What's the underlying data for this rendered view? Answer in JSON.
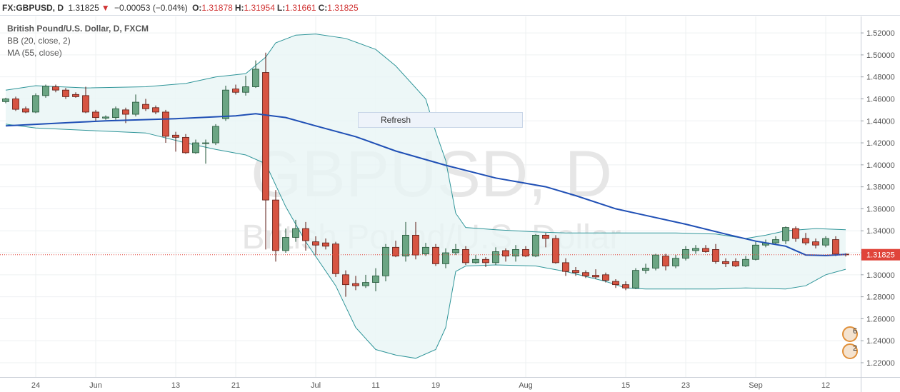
{
  "chart_data": {
    "type": "candlestick",
    "header": {
      "symbol": "FX:GBPUSD, D",
      "price": "1.31825",
      "arrow": "▼",
      "change": "−0.00053 (−0.04%)",
      "ohlc": [
        {
          "label": "O:",
          "value": "1.31878"
        },
        {
          "label": "H:",
          "value": "1.31954"
        },
        {
          "label": "L:",
          "value": "1.31661"
        },
        {
          "label": "C:",
          "value": "1.31825"
        }
      ]
    },
    "legend": [
      "British Pound/U.S. Dollar, D, FXCM",
      "BB (20, close, 2)",
      "MA (55, close)"
    ],
    "watermark": [
      "GBPUSD, D",
      "British Pound/U.S. Dollar"
    ],
    "button": "Refresh",
    "categories": [
      null,
      null,
      null,
      "24",
      null,
      null,
      null,
      null,
      null,
      "Jun",
      null,
      null,
      null,
      null,
      null,
      null,
      null,
      "13",
      null,
      null,
      null,
      null,
      null,
      "21",
      null,
      null,
      null,
      null,
      null,
      null,
      null,
      "Jul",
      null,
      null,
      null,
      null,
      null,
      "11",
      null,
      null,
      null,
      null,
      null,
      "19",
      null,
      null,
      null,
      null,
      null,
      null,
      null,
      null,
      "Aug",
      null,
      null,
      null,
      null,
      null,
      null,
      null,
      null,
      null,
      "15",
      null,
      null,
      null,
      null,
      null,
      "23",
      null,
      null,
      null,
      null,
      null,
      null,
      "Sep",
      null,
      null,
      null,
      null,
      null,
      null,
      "12",
      null,
      null
    ],
    "open": [
      1.4575,
      1.46,
      1.451,
      1.448,
      1.463,
      1.471,
      1.468,
      1.464,
      1.463,
      1.448,
      1.4425,
      1.443,
      1.45,
      1.446,
      1.455,
      1.452,
      1.448,
      1.427,
      1.425,
      1.411,
      1.4195,
      1.42,
      1.442,
      1.469,
      1.466,
      1.471,
      1.484,
      1.368,
      1.322,
      1.334,
      1.342,
      1.33,
      1.329,
      1.328,
      1.3,
      1.292,
      1.29,
      1.293,
      1.299,
      1.325,
      1.317,
      1.336,
      1.319,
      1.325,
      1.31,
      1.32,
      1.323,
      1.311,
      1.314,
      1.311,
      1.322,
      1.317,
      1.323,
      1.317,
      1.336,
      1.333,
      1.311,
      1.304,
      1.302,
      1.2995,
      1.3,
      1.294,
      1.291,
      1.288,
      1.304,
      1.306,
      1.317,
      1.308,
      1.315,
      1.322,
      1.324,
      1.323,
      1.312,
      1.312,
      1.308,
      1.314,
      1.327,
      1.329,
      1.331,
      1.342,
      1.333,
      1.33,
      1.327,
      1.332,
      1.31878
    ],
    "high": [
      1.461,
      1.462,
      1.453,
      1.465,
      1.473,
      1.473,
      1.47,
      1.466,
      1.471,
      1.45,
      1.445,
      1.453,
      1.452,
      1.464,
      1.46,
      1.454,
      1.45,
      1.43,
      1.428,
      1.423,
      1.423,
      1.437,
      1.472,
      1.473,
      1.481,
      1.495,
      1.502,
      1.377,
      1.342,
      1.35,
      1.348,
      1.335,
      1.333,
      1.33,
      1.304,
      1.299,
      1.3,
      1.306,
      1.328,
      1.331,
      1.348,
      1.348,
      1.329,
      1.328,
      1.324,
      1.328,
      1.326,
      1.318,
      1.316,
      1.325,
      1.324,
      1.327,
      1.326,
      1.337,
      1.338,
      1.336,
      1.315,
      1.307,
      1.304,
      1.305,
      1.302,
      1.296,
      1.294,
      1.306,
      1.31,
      1.319,
      1.319,
      1.318,
      1.326,
      1.327,
      1.327,
      1.328,
      1.315,
      1.315,
      1.317,
      1.33,
      1.332,
      1.335,
      1.344,
      1.344,
      1.338,
      1.333,
      1.335,
      1.335,
      1.31954
    ],
    "low": [
      1.456,
      1.449,
      1.447,
      1.447,
      1.461,
      1.466,
      1.46,
      1.461,
      1.447,
      1.44,
      1.441,
      1.441,
      1.438,
      1.444,
      1.449,
      1.446,
      1.42,
      1.412,
      1.41,
      1.41,
      1.401,
      1.418,
      1.44,
      1.464,
      1.463,
      1.47,
      1.323,
      1.312,
      1.32,
      1.33,
      1.322,
      1.318,
      1.323,
      1.298,
      1.28,
      1.286,
      1.288,
      1.285,
      1.294,
      1.316,
      1.312,
      1.314,
      1.317,
      1.308,
      1.306,
      1.318,
      1.309,
      1.31,
      1.307,
      1.309,
      1.312,
      1.312,
      1.316,
      1.316,
      1.325,
      1.31,
      1.299,
      1.299,
      1.297,
      1.296,
      1.293,
      1.288,
      1.286,
      1.287,
      1.301,
      1.304,
      1.304,
      1.306,
      1.313,
      1.319,
      1.32,
      1.31,
      1.307,
      1.307,
      1.307,
      1.313,
      1.325,
      1.328,
      1.328,
      1.33,
      1.327,
      1.324,
      1.325,
      1.317,
      1.31661
    ],
    "close": [
      1.46,
      1.4505,
      1.448,
      1.463,
      1.4715,
      1.468,
      1.462,
      1.462,
      1.448,
      1.443,
      1.4435,
      1.451,
      1.446,
      1.457,
      1.451,
      1.448,
      1.426,
      1.425,
      1.411,
      1.42,
      1.42,
      1.435,
      1.468,
      1.466,
      1.471,
      1.487,
      1.368,
      1.322,
      1.334,
      1.342,
      1.331,
      1.327,
      1.326,
      1.301,
      1.291,
      1.29,
      1.293,
      1.299,
      1.325,
      1.317,
      1.336,
      1.318,
      1.325,
      1.31,
      1.32,
      1.323,
      1.311,
      1.314,
      1.311,
      1.321,
      1.317,
      1.323,
      1.317,
      1.336,
      1.333,
      1.311,
      1.303,
      1.302,
      1.299,
      1.298,
      1.295,
      1.291,
      1.288,
      1.304,
      1.306,
      1.318,
      1.308,
      1.315,
      1.323,
      1.324,
      1.321,
      1.312,
      1.31,
      1.308,
      1.314,
      1.327,
      1.329,
      1.332,
      1.343,
      1.333,
      1.329,
      1.327,
      1.333,
      1.3188,
      1.31825
    ],
    "up_color": "#6ba583",
    "down_color": "#d75442",
    "bb": {
      "color": "#2f9599",
      "fill": "#e9f5f5",
      "upper": {
        "x": [
          0,
          3,
          8,
          14,
          18,
          21,
          24,
          26,
          27,
          29,
          31,
          34,
          37,
          39,
          42,
          43,
          44,
          45,
          46,
          49,
          53,
          56,
          60,
          64,
          67,
          71,
          74,
          76,
          78,
          81,
          84
        ],
        "values": [
          1.468,
          1.472,
          1.47,
          1.471,
          1.474,
          1.48,
          1.483,
          1.498,
          1.511,
          1.518,
          1.519,
          1.515,
          1.505,
          1.49,
          1.46,
          1.43,
          1.404,
          1.356,
          1.343,
          1.341,
          1.339,
          1.338,
          1.338,
          1.338,
          1.338,
          1.337,
          1.333,
          1.336,
          1.34,
          1.342,
          1.341
        ]
      },
      "lower": {
        "x": [
          0,
          3,
          9,
          14,
          18,
          21,
          24,
          26,
          28,
          30,
          33,
          35,
          37,
          39,
          41,
          43,
          44,
          45,
          46,
          49,
          53,
          56,
          60,
          62,
          64,
          71,
          74,
          78,
          80,
          82,
          84
        ],
        "values": [
          1.437,
          1.4335,
          1.431,
          1.429,
          1.42,
          1.414,
          1.409,
          1.401,
          1.362,
          1.33,
          1.29,
          1.252,
          1.232,
          1.227,
          1.224,
          1.232,
          1.252,
          1.303,
          1.308,
          1.309,
          1.308,
          1.303,
          1.294,
          1.288,
          1.287,
          1.287,
          1.288,
          1.287,
          1.29,
          1.3,
          1.305
        ]
      }
    },
    "ma": {
      "color": "#1f4fb5",
      "x": [
        0,
        7,
        10,
        17,
        23,
        25,
        28,
        31,
        35,
        39,
        44,
        49,
        54,
        57,
        61,
        64,
        68,
        72,
        75,
        78,
        80,
        82,
        84
      ],
      "values": [
        1.4354,
        1.4387,
        1.44,
        1.442,
        1.4445,
        1.4465,
        1.443,
        1.4354,
        1.4256,
        1.4126,
        1.3996,
        1.388,
        1.38,
        1.372,
        1.36,
        1.354,
        1.346,
        1.337,
        1.3306,
        1.326,
        1.318,
        1.3175,
        1.3185
      ]
    },
    "last_price": 1.31825,
    "last_price_color": "#e0443a",
    "event_counts": [
      6,
      2
    ],
    "ylim": [
      1.207,
      1.535
    ],
    "yticks": [
      {
        "value": 1.22,
        "label": "1.22000"
      },
      {
        "value": 1.24,
        "label": "1.24000"
      },
      {
        "value": 1.26,
        "label": "1.26000"
      },
      {
        "value": 1.28,
        "label": "1.28000"
      },
      {
        "value": 1.3,
        "label": "1.30000"
      },
      {
        "value": 1.32,
        "label": "1.32000"
      },
      {
        "value": 1.34,
        "label": "1.34000"
      },
      {
        "value": 1.36,
        "label": "1.36000"
      },
      {
        "value": 1.38,
        "label": "1.38000"
      },
      {
        "value": 1.4,
        "label": "1.40000"
      },
      {
        "value": 1.42,
        "label": "1.42000"
      },
      {
        "value": 1.44,
        "label": "1.44000"
      },
      {
        "value": 1.46,
        "label": "1.46000"
      },
      {
        "value": 1.48,
        "label": "1.48000"
      },
      {
        "value": 1.5,
        "label": "1.50000"
      },
      {
        "value": 1.52,
        "label": "1.52000"
      }
    ],
    "grid": true
  }
}
